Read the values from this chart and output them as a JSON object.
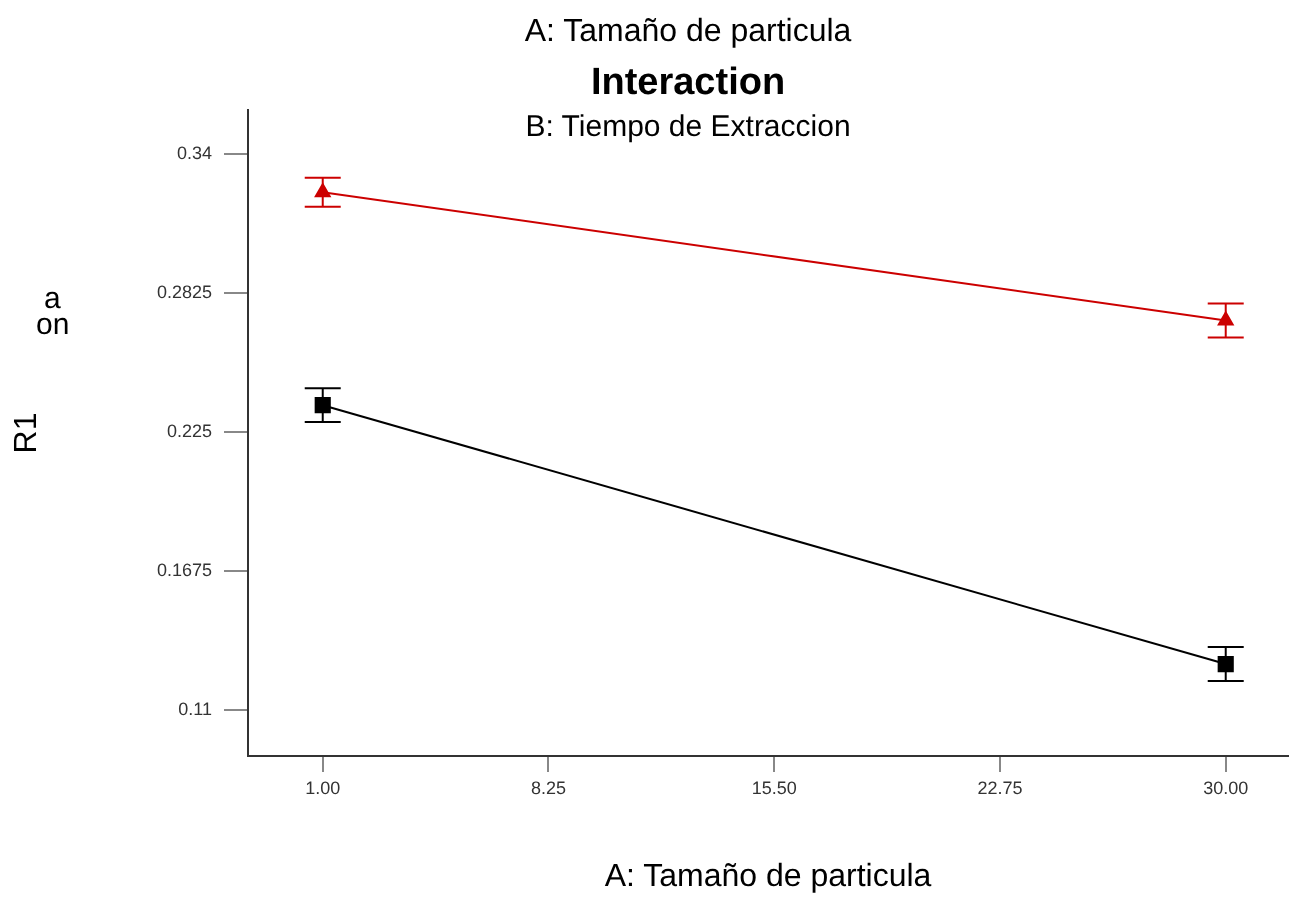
{
  "chart_data": {
    "type": "line",
    "title": "Interaction",
    "subtitle": "B: Tiempo de Extraccion",
    "xlabel": "A: Tamaño de particula",
    "ylabel": "R1",
    "annotations": [
      "A: Tamaño de particula",
      "a",
      "on"
    ],
    "x": [
      1,
      30
    ],
    "series": [
      {
        "color": "#cc0000",
        "marker": "triangle",
        "values": [
          0.324,
          0.271
        ],
        "errors": [
          0.006,
          0.007
        ]
      },
      {
        "color": "#000000",
        "marker": "square",
        "values": [
          0.236,
          0.129
        ],
        "errors": [
          0.007,
          0.007
        ]
      }
    ],
    "xlim": [
      -1.4,
      32
    ],
    "xticks": [
      {
        "value": 1,
        "label": "1.00"
      },
      {
        "value": 8.25,
        "label": "8.25"
      },
      {
        "value": 15.5,
        "label": "15.50"
      },
      {
        "value": 22.75,
        "label": "22.75"
      },
      {
        "value": 30,
        "label": "30.00"
      }
    ],
    "ylim": [
      0.091,
      0.358
    ],
    "yticks": [
      0.11,
      0.1675,
      0.225,
      0.2825,
      0.34
    ],
    "grid": false,
    "legend": false,
    "line_style": "solid"
  }
}
